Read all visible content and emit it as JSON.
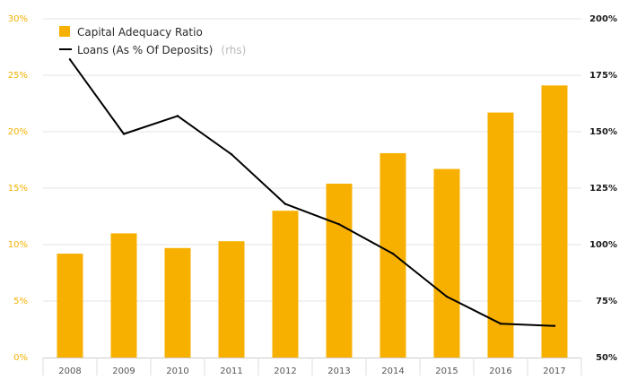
{
  "chart_data": {
    "type": "bar",
    "categories": [
      "2008",
      "2009",
      "2010",
      "2011",
      "2012",
      "2013",
      "2014",
      "2015",
      "2016",
      "2017"
    ],
    "series": [
      {
        "name": "Capital Adequacy Ratio",
        "type": "bar",
        "axis": "left",
        "color": "#f7b000",
        "values": [
          9.2,
          11.0,
          9.7,
          10.3,
          13.0,
          15.4,
          18.1,
          16.7,
          21.7,
          24.1
        ]
      },
      {
        "name": "Loans (As % Of Deposits)",
        "note": "(rhs)",
        "type": "line",
        "axis": "right",
        "color": "#000000",
        "values": [
          182,
          149,
          157,
          140,
          118,
          109,
          96,
          77,
          65,
          64
        ]
      }
    ],
    "left_axis": {
      "ylim": [
        0,
        30
      ],
      "ticks": [
        0,
        5,
        10,
        15,
        20,
        25,
        30
      ],
      "tick_labels": [
        "0%",
        "5%",
        "10%",
        "15%",
        "20%",
        "25%",
        "30%"
      ],
      "color": "#f2b100"
    },
    "right_axis": {
      "ylim": [
        50,
        200
      ],
      "ticks": [
        50,
        75,
        100,
        125,
        150,
        175,
        200
      ],
      "tick_labels": [
        "50%",
        "75%",
        "100%",
        "125%",
        "150%",
        "175%",
        "200%"
      ],
      "color": "#1a1a1a"
    },
    "grid": true,
    "legend_position": "top-left"
  }
}
